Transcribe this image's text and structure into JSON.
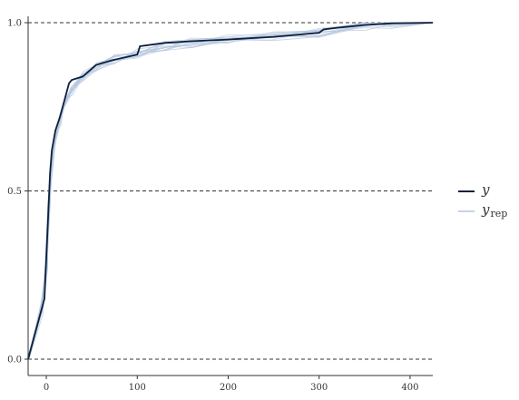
{
  "chart_data": {
    "type": "line",
    "title": "",
    "xlabel": "",
    "ylabel": "",
    "xlim": [
      -20,
      425
    ],
    "ylim": [
      0,
      1
    ],
    "x_ticks": [
      0,
      100,
      200,
      300,
      400
    ],
    "x_tick_labels": [
      "0",
      "100",
      "200",
      "300",
      "400"
    ],
    "y_ticks": [
      0,
      0.5,
      1
    ],
    "y_tick_labels": [
      "0.0",
      "0.5",
      "1.0"
    ],
    "hlines": [
      0,
      0.5,
      1
    ],
    "legend": {
      "position": "right",
      "entries": [
        {
          "main": "y",
          "sub": "",
          "color": "#0d1f3c"
        },
        {
          "main": "y",
          "sub": "rep",
          "color": "#b3c6de"
        }
      ]
    },
    "series": [
      {
        "name": "y",
        "color": "#0d1f3c",
        "x": [
          -20,
          -2,
          0,
          2,
          4,
          6,
          10,
          15,
          20,
          25,
          28,
          40,
          55,
          75,
          100,
          103,
          130,
          160,
          200,
          250,
          300,
          305,
          320,
          350,
          380,
          425
        ],
        "y": [
          0,
          0.18,
          0.3,
          0.42,
          0.55,
          0.62,
          0.68,
          0.72,
          0.77,
          0.82,
          0.83,
          0.84,
          0.875,
          0.89,
          0.905,
          0.93,
          0.94,
          0.945,
          0.95,
          0.958,
          0.97,
          0.98,
          0.985,
          0.993,
          0.998,
          1.0
        ]
      },
      {
        "name": "yrep",
        "color": "#b3c6de",
        "x": [
          -20,
          -5,
          0,
          3,
          6,
          10,
          15,
          20,
          28,
          40,
          55,
          75,
          100,
          130,
          160,
          200,
          250,
          300,
          350,
          380,
          425
        ],
        "y": [
          0,
          0.15,
          0.28,
          0.45,
          0.58,
          0.66,
          0.71,
          0.76,
          0.8,
          0.84,
          0.87,
          0.89,
          0.91,
          0.93,
          0.94,
          0.95,
          0.96,
          0.97,
          0.99,
          0.997,
          1.0
        ]
      }
    ]
  }
}
